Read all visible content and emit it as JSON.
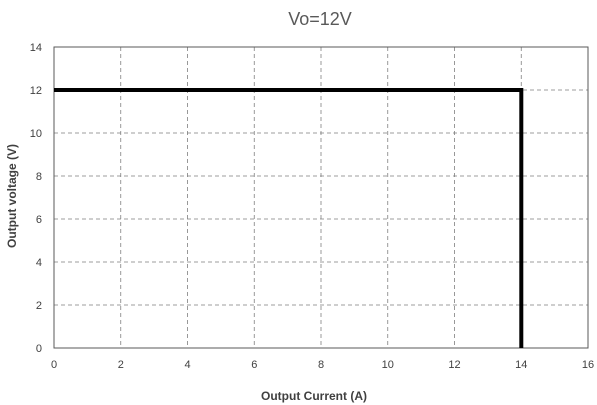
{
  "chart_data": {
    "type": "line",
    "title": "Vo=12V",
    "xlabel": "Output Current (A)",
    "ylabel": "Output voltage (V)",
    "xlim": [
      0,
      16
    ],
    "ylim": [
      0,
      14
    ],
    "xticks": [
      "0",
      "2",
      "4",
      "6",
      "8",
      "10",
      "12",
      "14",
      "16"
    ],
    "yticks": [
      "0",
      "2",
      "4",
      "6",
      "8",
      "10",
      "12",
      "14"
    ],
    "grid": true,
    "legend": "none",
    "series": [
      {
        "color": "#000000",
        "x": [
          0,
          14,
          14
        ],
        "y": [
          12,
          12,
          0
        ]
      }
    ]
  }
}
